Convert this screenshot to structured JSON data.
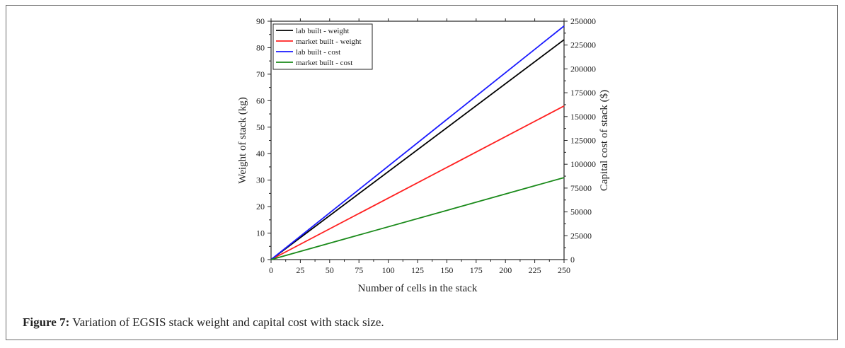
{
  "caption": {
    "label": "Figure 7:",
    "text": " Variation of EGSIS stack weight and capital cost with stack size."
  },
  "chart_data": {
    "type": "line",
    "xlabel": "Number of cells in the stack",
    "ylabel": "Weight of stack (kg)",
    "y2label": "Capital cost of stack ($)",
    "xlim": [
      0,
      250
    ],
    "ylim": [
      0,
      90
    ],
    "y2lim": [
      0,
      250000
    ],
    "xticks": [
      0,
      25,
      50,
      75,
      100,
      125,
      150,
      175,
      200,
      225,
      250
    ],
    "yticks": [
      0,
      10,
      20,
      30,
      40,
      50,
      60,
      70,
      80,
      90
    ],
    "y2ticks": [
      0,
      25000,
      50000,
      75000,
      100000,
      125000,
      150000,
      175000,
      200000,
      225000,
      250000
    ],
    "grid": false,
    "legend_position": "top-left",
    "series": [
      {
        "name": "lab built - weight",
        "axis": "left",
        "color": "#000000",
        "x": [
          0,
          250
        ],
        "values": [
          0,
          83
        ]
      },
      {
        "name": "market built - weight",
        "axis": "left",
        "color": "#ff2020",
        "x": [
          0,
          250
        ],
        "values": [
          0,
          58
        ]
      },
      {
        "name": "lab built - cost",
        "axis": "right",
        "color": "#1a1aff",
        "x": [
          0,
          250
        ],
        "values": [
          0,
          245000
        ]
      },
      {
        "name": "market built - cost",
        "axis": "right",
        "color": "#1a8a1a",
        "x": [
          0,
          250
        ],
        "values": [
          0,
          86000
        ]
      }
    ]
  }
}
